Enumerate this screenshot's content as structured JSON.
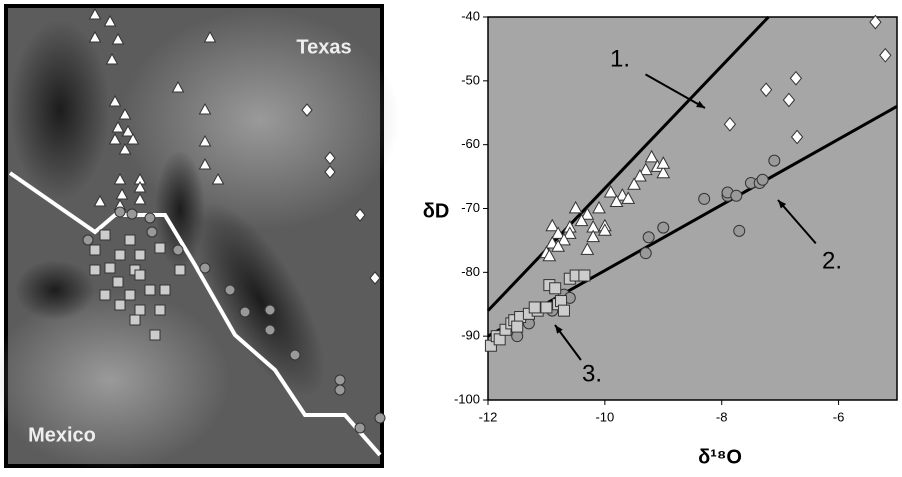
{
  "map": {
    "labels": [
      "Texas",
      "Mexico"
    ]
  },
  "chart_data": {
    "type": "scatter",
    "x_label": "δ¹⁸O",
    "y_label": "δD",
    "xlim": [
      -12,
      -5
    ],
    "xticks": [
      -12,
      -10,
      -8,
      -6
    ],
    "ylim": [
      -100,
      -40
    ],
    "yticks": [
      -100,
      -90,
      -80,
      -70,
      -60,
      -50,
      -40
    ],
    "background": "#a6a6a6",
    "annotations": [
      "1.",
      "2.",
      "3."
    ],
    "fit_lines": [
      {
        "x": [
          -12,
          -7.2
        ],
        "values": [
          -86,
          -40
        ],
        "color": "#000000"
      },
      {
        "x": [
          -12,
          -5
        ],
        "values": [
          -90,
          -54
        ],
        "color": "#000000"
      }
    ],
    "series": [
      {
        "marker": "triangle",
        "color": "#ffffff",
        "x": [
          -9.2,
          -9.1,
          -9.0,
          -9.3,
          -9.4,
          -9.5,
          -9.7,
          -9.9,
          -9.8,
          -10.1,
          -10.3,
          -10.5,
          -10.4,
          -10.2,
          -10.0,
          -10.0,
          -10.6,
          -10.6,
          -10.3,
          -10.2,
          -10.9,
          -10.8,
          -10.7,
          -10.9,
          -11.0,
          -10.95,
          -10.8,
          -9.6,
          -9.0
        ],
        "values": [
          -62,
          -63.5,
          -64.5,
          -64,
          -65,
          -66.3,
          -68,
          -67.5,
          -69,
          -70,
          -71,
          -70,
          -72,
          -73,
          -72.8,
          -73.5,
          -73,
          -74,
          -76.5,
          -74.5,
          -72.8,
          -74,
          -75,
          -75.5,
          -77,
          -77.5,
          -76,
          -68.5,
          -63
        ]
      },
      {
        "marker": "circle",
        "color": "#999999",
        "x": [
          -11.5,
          -11.3,
          -10.9,
          -10.7,
          -10.6,
          -9.3,
          -9.25,
          -9.0,
          -8.3,
          -7.9,
          -7.9,
          -7.75,
          -7.7,
          -7.5,
          -7.35,
          -7.3,
          -7.1
        ],
        "values": [
          -90,
          -88,
          -86,
          -83.5,
          -84,
          -77,
          -74.5,
          -73,
          -68.5,
          -68,
          -67.5,
          -68,
          -73.5,
          -66,
          -66,
          -65.5,
          -62.5
        ]
      },
      {
        "marker": "square",
        "color": "#cccccc",
        "x": [
          -11.95,
          -11.85,
          -11.8,
          -11.7,
          -11.6,
          -11.55,
          -11.45,
          -11.3,
          -11.15,
          -11.0,
          -10.95,
          -10.85,
          -10.8,
          -10.75,
          -10.7,
          -10.6,
          -10.5,
          -10.35,
          -11.5,
          -11.2
        ],
        "values": [
          -91.5,
          -90,
          -90.5,
          -89,
          -88,
          -87.5,
          -87,
          -86.5,
          -86,
          -85.5,
          -82,
          -82.5,
          -85,
          -84.5,
          -86,
          -81,
          -80.5,
          -80.5,
          -88.5,
          -85.5
        ]
      },
      {
        "marker": "diamond",
        "color": "#ffffff",
        "x": [
          -5.37,
          -5.2,
          -6.73,
          -7.24,
          -6.85,
          -7.86,
          -6.71
        ],
        "values": [
          -40.8,
          -46,
          -49.6,
          -51.4,
          -53,
          -56.8,
          -58.8
        ]
      }
    ]
  }
}
